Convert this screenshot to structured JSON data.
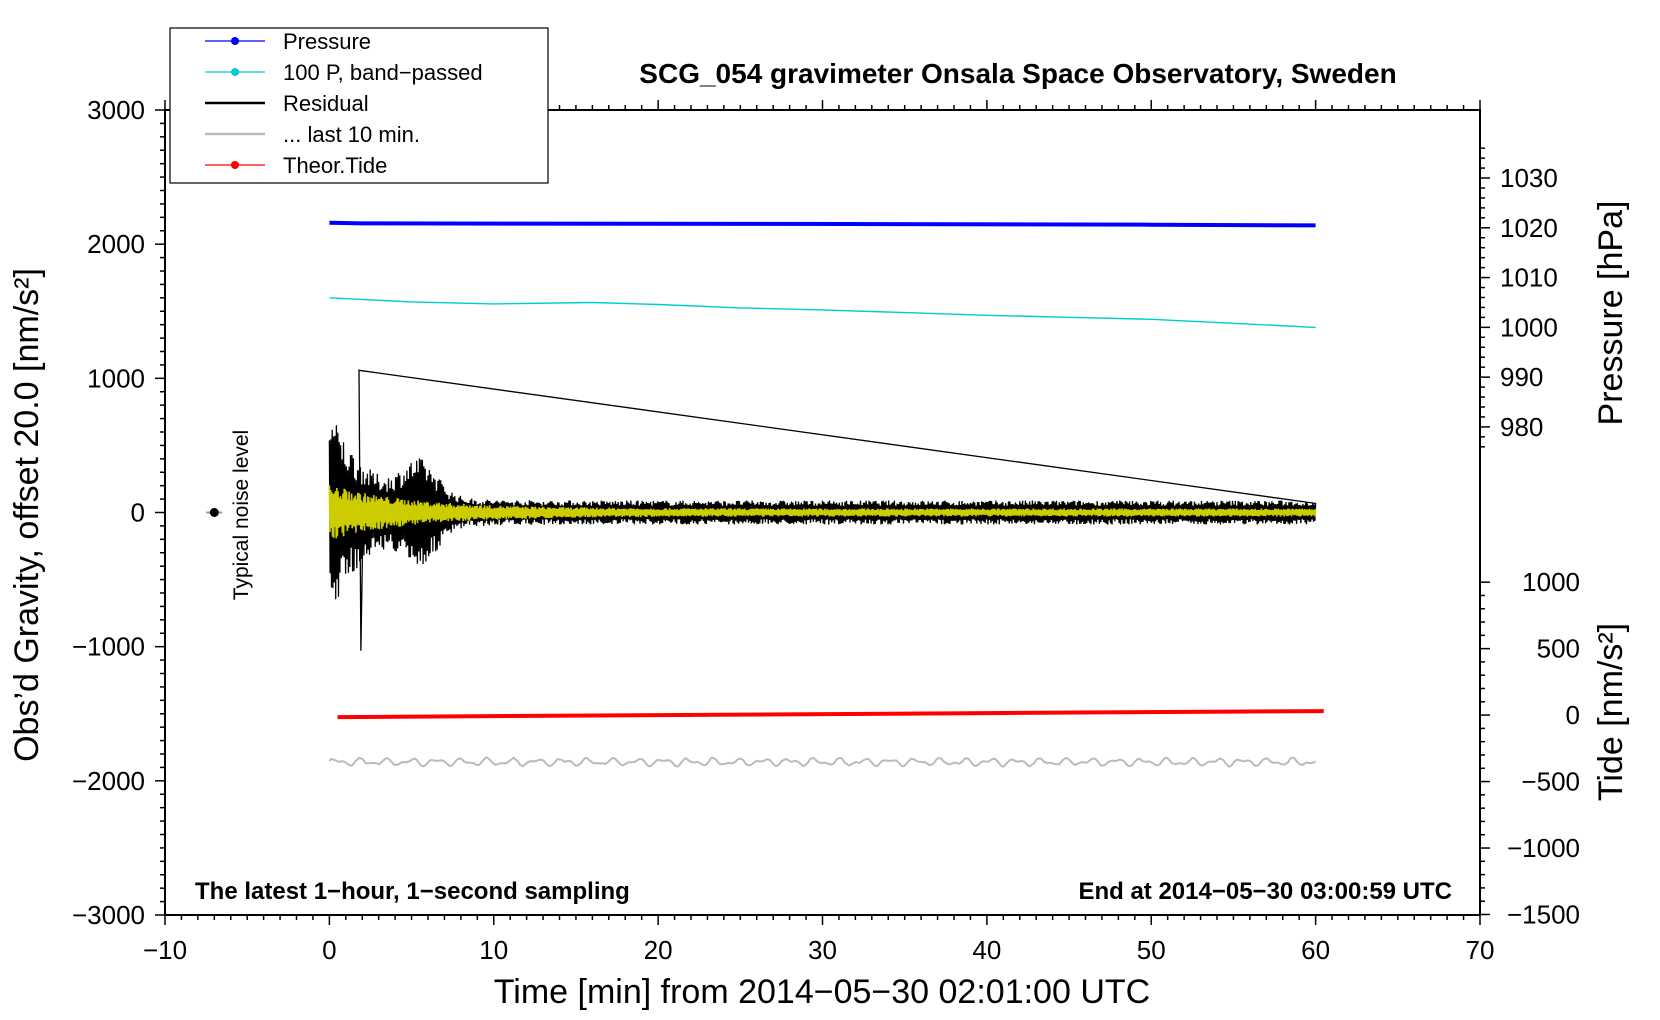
{
  "chart_data": {
    "type": "line",
    "title": "SCG_054 gravimeter Onsala Space Observatory, Sweden",
    "xlabel": "Time [min] from 2014−05−30 02:01:00 UTC",
    "ylabel_left": "Obs’d Gravity, offset 20.0 [nm/s²]",
    "ylabel_right_top": "Pressure [hPa]",
    "ylabel_right_bottom": "Tide [nm/s²]",
    "xlim": [
      -10,
      70
    ],
    "ylim": [
      -3000,
      3000
    ],
    "x_ticks": [
      -10,
      0,
      10,
      20,
      30,
      40,
      50,
      60,
      70
    ],
    "x_tick_labels": [
      "−10",
      "0",
      "10",
      "20",
      "30",
      "40",
      "50",
      "60",
      "70"
    ],
    "y_ticks": [
      -3000,
      -2000,
      -1000,
      0,
      1000,
      2000,
      3000
    ],
    "y_tick_labels": [
      "−3000",
      "−2000",
      "−1000",
      "0",
      "1000",
      "2000",
      "3000"
    ],
    "pressure_axis": {
      "ticks": [
        980,
        990,
        1000,
        1010,
        1020,
        1030
      ],
      "tick_labels": [
        "980",
        "990",
        "1000",
        "1010",
        "1020",
        "1030"
      ],
      "gravity_at_1000": 1380,
      "gravity_per_hpa": 37.1
    },
    "tide_axis": {
      "ticks": [
        -1500,
        -1000,
        -500,
        0,
        500,
        1000
      ],
      "tick_labels": [
        "−1500",
        "−1000",
        "−500",
        "0",
        "500",
        "1000"
      ],
      "gravity_at_0": -1510,
      "gravity_per_unit": 0.9908
    },
    "legend": [
      {
        "label": "Pressure",
        "color": "#0000ff",
        "marker": true
      },
      {
        "label": "100 P, band−passed",
        "color": "#00cccc",
        "marker": true
      },
      {
        "label": "Residual",
        "color": "#000000",
        "marker": false
      },
      {
        "label": "... last 10 min.",
        "color": "#bbbbbb",
        "marker": false
      },
      {
        "label": "Theor.Tide",
        "color": "#ff0000",
        "marker": true
      }
    ],
    "series": [
      {
        "name": "Pressure",
        "color": "#0000ff",
        "x": [
          0,
          2,
          31.5,
          50,
          60
        ],
        "y": [
          2160,
          2155,
          2150,
          2145,
          2140
        ]
      },
      {
        "name": "100 P, band−passed",
        "color": "#00cccc",
        "x": [
          0,
          5,
          10,
          16,
          20,
          25,
          30,
          35,
          40,
          45,
          50,
          55,
          60
        ],
        "y": [
          1600,
          1570,
          1555,
          1565,
          1550,
          1525,
          1510,
          1490,
          1470,
          1455,
          1440,
          1410,
          1380
        ]
      },
      {
        "name": "Theor.Tide",
        "color": "#ff0000",
        "x": [
          0.5,
          20,
          40,
          60.5
        ],
        "y": [
          -1525,
          -1510,
          -1495,
          -1480
        ]
      },
      {
        "name": "... last 10 min.",
        "color": "#bbbbbb",
        "x_range": [
          0,
          60
        ],
        "baseline": -1860,
        "amplitude": 35
      },
      {
        "name": "Residual",
        "color": "#000000",
        "x_range": [
          0,
          60
        ],
        "baseline": 0,
        "peak": 1060,
        "trough": -1030,
        "peak_at_min": 1.8
      },
      {
        "name": "Residual (filtered)",
        "color": "#cccc00",
        "x_range": [
          0,
          60
        ],
        "baseline": 0,
        "peak": 180
      }
    ],
    "noise_marker": {
      "x": -7,
      "y": 0,
      "label": "Typical noise level"
    },
    "annotations": {
      "bottom_left": "The latest 1−hour, 1−second sampling",
      "bottom_right": "End at 2014−05−30 03:00:59 UTC"
    }
  }
}
